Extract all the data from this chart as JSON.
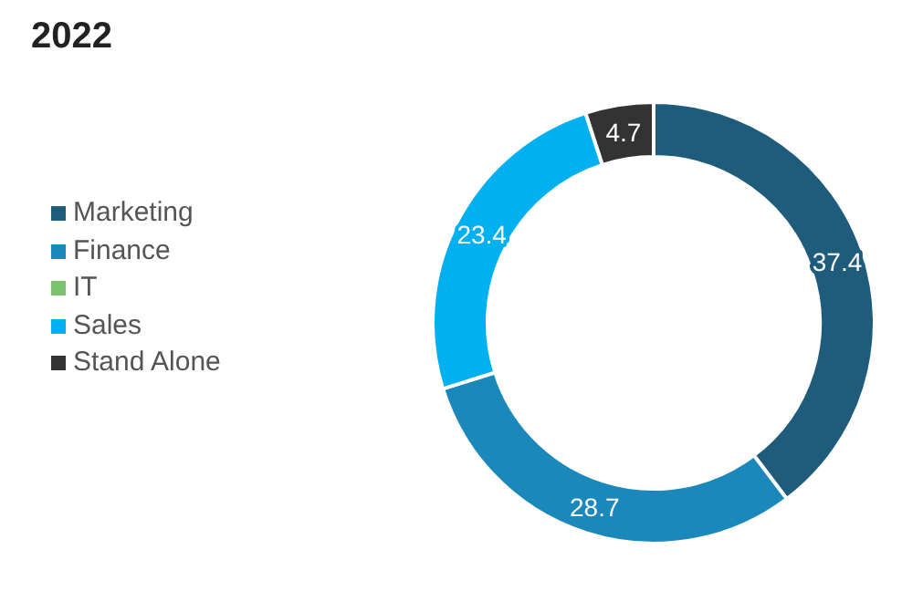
{
  "chart_data": {
    "type": "donut",
    "title": "2022",
    "categories": [
      "Marketing",
      "Finance",
      "IT",
      "Sales",
      "Stand Alone"
    ],
    "values": [
      37.4,
      28.7,
      null,
      23.4,
      4.7
    ],
    "colors": [
      "#1f5c7c",
      "#1a88ba",
      "#7ac36a",
      "#00b0f0",
      "#333333"
    ],
    "data_labels": true,
    "legend": "left"
  }
}
